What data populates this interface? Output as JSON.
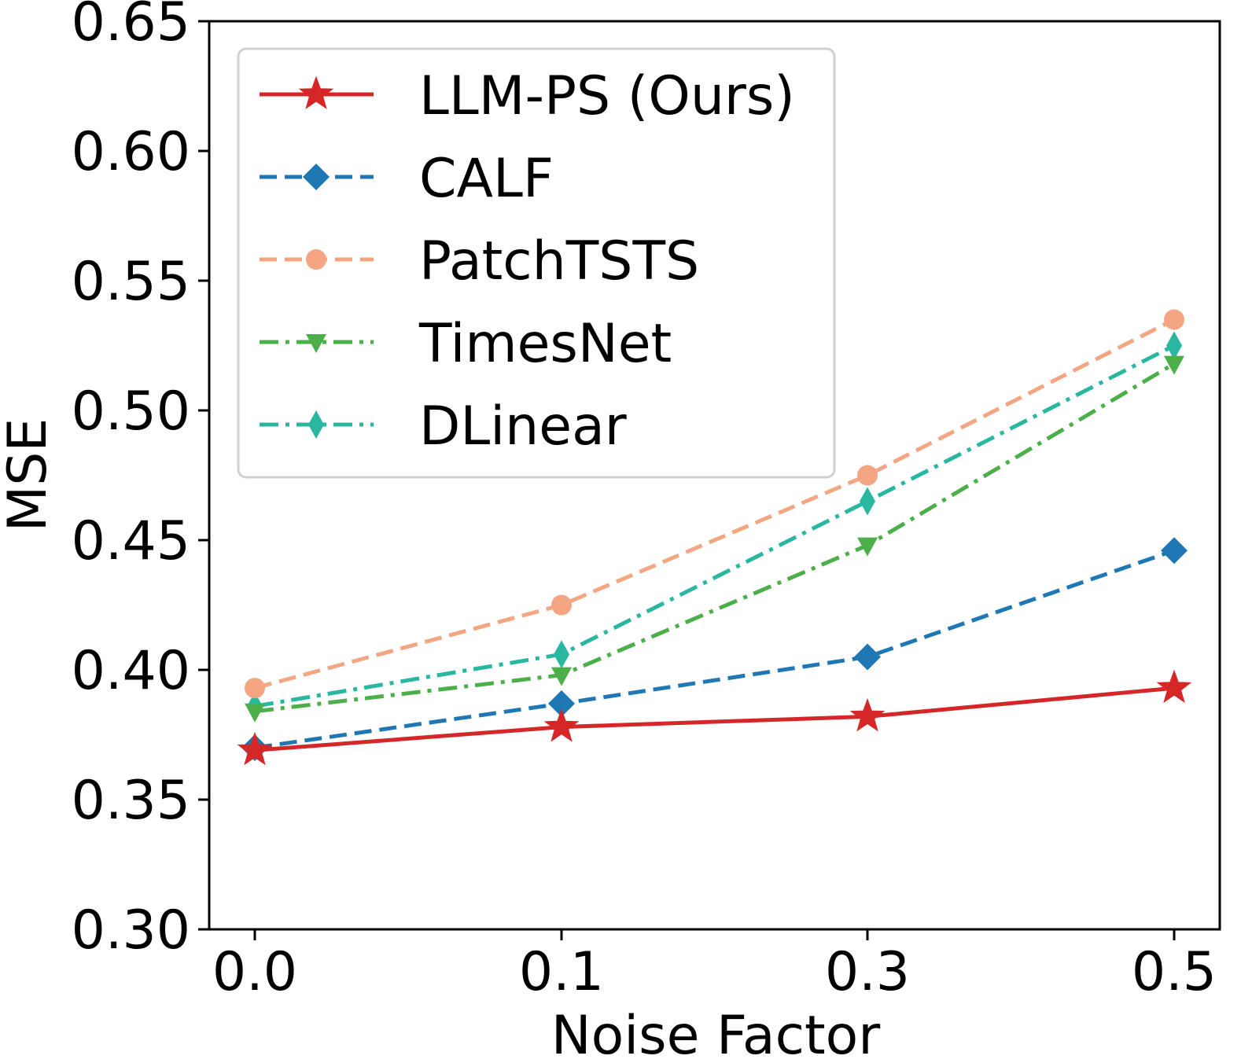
{
  "chart_data": {
    "type": "line",
    "title": "",
    "xlabel": "Noise Factor",
    "ylabel": "MSE",
    "categories": [
      "0.0",
      "0.1",
      "0.3",
      "0.5"
    ],
    "ylim": [
      0.3,
      0.65
    ],
    "yticks": [
      "0.30",
      "0.35",
      "0.40",
      "0.45",
      "0.50",
      "0.55",
      "0.60",
      "0.65"
    ],
    "grid": false,
    "legend_position": "top-left",
    "series": [
      {
        "name": "LLM-PS (Ours)",
        "values": [
          0.369,
          0.378,
          0.382,
          0.393
        ],
        "color": "#d62728",
        "marker": "star",
        "dash": "solid"
      },
      {
        "name": "CALF",
        "values": [
          0.37,
          0.387,
          0.405,
          0.446
        ],
        "color": "#1f77b4",
        "marker": "diamond",
        "dash": "dashed"
      },
      {
        "name": "PatchTSTS",
        "values": [
          0.393,
          0.425,
          0.475,
          0.535
        ],
        "color": "#f4a582",
        "marker": "circle",
        "dash": "dashed"
      },
      {
        "name": "TimesNet",
        "values": [
          0.384,
          0.398,
          0.448,
          0.518
        ],
        "color": "#4daf4a",
        "marker": "triangle-down",
        "dash": "dashdot"
      },
      {
        "name": "DLinear",
        "values": [
          0.386,
          0.406,
          0.465,
          0.525
        ],
        "color": "#2ab7a0",
        "marker": "thin-diamond",
        "dash": "dashdot"
      }
    ]
  }
}
